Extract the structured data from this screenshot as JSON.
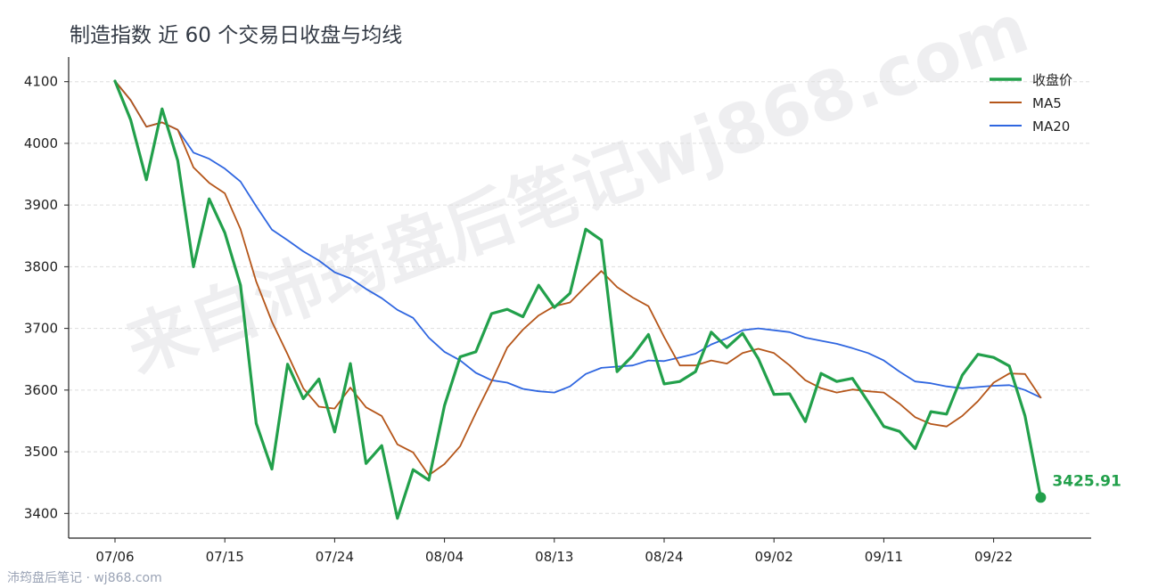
{
  "title": "制造指数 近 60 个交易日收盘与均线",
  "watermark": "来自沛筠盘后笔记wj868.com",
  "footer": "沛筠盘后笔记 · wj868.com",
  "colors": {
    "close": "#22a04b",
    "ma5": "#b5561a",
    "ma20": "#2f66e0",
    "grid": "#dddddd",
    "axis": "#222222"
  },
  "chart_data": {
    "type": "line",
    "title": "制造指数 近 60 个交易日收盘与均线",
    "xlabel": "",
    "ylabel": "",
    "ylim": [
      3360,
      4140
    ],
    "yticks": [
      3400,
      3500,
      3600,
      3700,
      3800,
      3900,
      4000,
      4100
    ],
    "x_tick_labels": [
      "07/06",
      "07/15",
      "07/24",
      "08/04",
      "08/13",
      "08/24",
      "09/02",
      "09/11",
      "09/22"
    ],
    "x_tick_indices": [
      0,
      7,
      14,
      21,
      28,
      35,
      42,
      49,
      56
    ],
    "grid": "horizontal dashed",
    "legend_position": "top-right",
    "last_value_label": "3425.91",
    "series": [
      {
        "name": "收盘价",
        "values": [
          4101,
          4038,
          3941,
          4056,
          3972,
          3800,
          3910,
          3855,
          3770,
          3546,
          3472,
          3642,
          3586,
          3618,
          3532,
          3643,
          3481,
          3510,
          3392,
          3471,
          3454,
          3575,
          3654,
          3662,
          3724,
          3731,
          3719,
          3770,
          3734,
          3757,
          3861,
          3843,
          3630,
          3656,
          3690,
          3610,
          3614,
          3630,
          3694,
          3669,
          3692,
          3651,
          3593,
          3594,
          3549,
          3627,
          3614,
          3619,
          3581,
          3541,
          3533,
          3505,
          3565,
          3561,
          3624,
          3658,
          3653,
          3639,
          3558,
          3425.91
        ]
      },
      {
        "name": "MA5",
        "values": [
          4101,
          4070,
          4027,
          4034,
          4022,
          3961,
          3936,
          3919,
          3861,
          3776,
          3711,
          3658,
          3603,
          3573,
          3570,
          3604,
          3572,
          3558,
          3512,
          3499,
          3462,
          3480,
          3509,
          3563,
          3614,
          3669,
          3698,
          3721,
          3736,
          3742,
          3768,
          3793,
          3767,
          3750,
          3736,
          3686,
          3640,
          3640,
          3648,
          3643,
          3660,
          3667,
          3660,
          3640,
          3616,
          3603,
          3596,
          3601,
          3598,
          3596,
          3578,
          3556,
          3545,
          3541,
          3558,
          3582,
          3612,
          3627,
          3626,
          3588
        ]
      },
      {
        "name": "MA20",
        "values": [
          4101,
          4070,
          4027,
          4034,
          4022,
          3985,
          3975,
          3959,
          3938,
          3898,
          3860,
          3843,
          3825,
          3810,
          3791,
          3781,
          3764,
          3749,
          3730,
          3717,
          3685,
          3662,
          3648,
          3628,
          3616,
          3612,
          3602,
          3598,
          3596,
          3606,
          3626,
          3636,
          3638,
          3640,
          3648,
          3647,
          3653,
          3659,
          3674,
          3684,
          3697,
          3700,
          3697,
          3694,
          3685,
          3680,
          3675,
          3668,
          3660,
          3648,
          3630,
          3614,
          3611,
          3606,
          3603,
          3605,
          3607,
          3608,
          3600,
          3588
        ]
      }
    ]
  }
}
